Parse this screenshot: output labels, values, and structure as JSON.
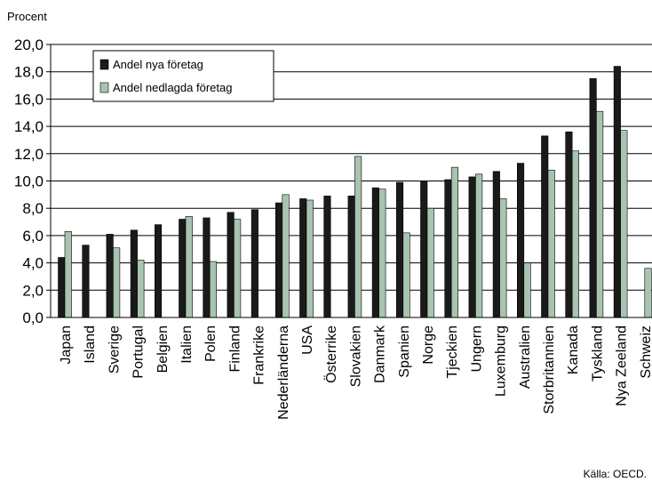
{
  "chart_data": {
    "type": "bar",
    "ylabel": "Procent",
    "ylim": [
      0,
      20
    ],
    "yticks": [
      "0,0",
      "2,0",
      "4,0",
      "6,0",
      "8,0",
      "10,0",
      "12,0",
      "14,0",
      "16,0",
      "18,0",
      "20,0"
    ],
    "categories": [
      "Japan",
      "Island",
      "Sverige",
      "Portugal",
      "Belgien",
      "Italien",
      "Polen",
      "Finland",
      "Frankrike",
      "Nederländerna",
      "USA",
      "Österrike",
      "Slovakien",
      "Danmark",
      "Spanien",
      "Norge",
      "Tjeckien",
      "Ungern",
      "Luxemburg",
      "Australien",
      "Storbritannien",
      "Kanada",
      "Tyskland",
      "Nya Zeeland",
      "Schweiz"
    ],
    "series": [
      {
        "name": "Andel nya företag",
        "color": "#1a1a1a",
        "values": [
          4.4,
          5.3,
          6.1,
          6.4,
          6.8,
          7.2,
          7.3,
          7.7,
          7.9,
          8.4,
          8.7,
          8.9,
          8.9,
          9.5,
          9.9,
          10.0,
          10.1,
          10.3,
          10.7,
          11.3,
          13.3,
          13.6,
          17.5,
          18.4,
          null
        ]
      },
      {
        "name": "Andel nedlagda företag",
        "color": "#a8c4b0",
        "values": [
          6.3,
          null,
          5.1,
          4.2,
          null,
          7.4,
          4.1,
          7.2,
          null,
          9.0,
          8.6,
          null,
          11.8,
          9.4,
          6.2,
          8.0,
          11.0,
          10.5,
          8.7,
          4.0,
          10.8,
          12.2,
          15.1,
          13.7,
          3.6
        ]
      }
    ],
    "grid": true,
    "legend": "top-left",
    "source": "Källa: OECD."
  }
}
